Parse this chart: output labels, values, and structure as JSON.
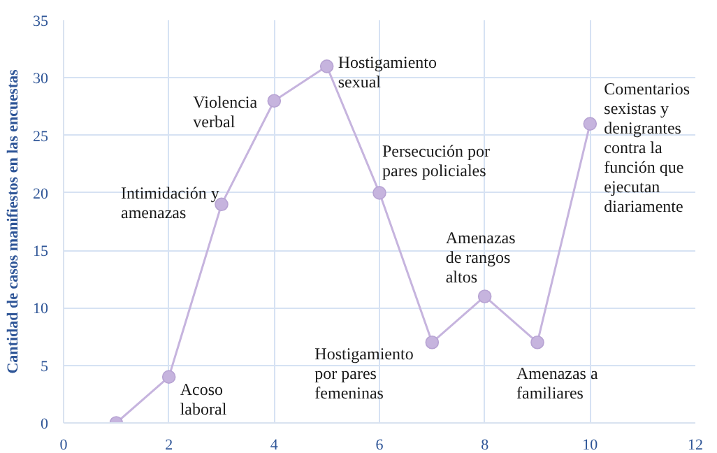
{
  "chart_data": {
    "type": "line",
    "ylabel": "Cantidad de casos manifiestos en las encuestas",
    "x": [
      1,
      2,
      3,
      4,
      5,
      6,
      7,
      8,
      9,
      10
    ],
    "series": [
      {
        "color": "#c6b4de",
        "values": [
          0,
          4,
          19,
          28,
          31,
          20,
          7,
          11,
          7,
          26
        ]
      }
    ],
    "xlim": [
      0,
      12
    ],
    "xticks": [
      0,
      2,
      4,
      6,
      8,
      10,
      12
    ],
    "ylim": [
      0,
      35
    ],
    "yticks": [
      0,
      5,
      10,
      15,
      20,
      25,
      30,
      35
    ],
    "grid": true,
    "marker": "circle",
    "line_style": "solid",
    "annotations": [
      {
        "text": "Acoso\nlaboral",
        "x": 2,
        "y": 4
      },
      {
        "text": "Intimidación  y\namenazas",
        "x": 3,
        "y": 19
      },
      {
        "text": "Violencia\nverbal",
        "x": 4,
        "y": 28
      },
      {
        "text": "Hostigamiento\nsexual",
        "x": 5,
        "y": 31
      },
      {
        "text": "Persecución por\npares policiales",
        "x": 6,
        "y": 20
      },
      {
        "text": "Hostigamiento\npor pares\nfemeninas",
        "x": 7,
        "y": 7
      },
      {
        "text": "Amenazas\nde rangos\naltos",
        "x": 8,
        "y": 11
      },
      {
        "text": "Amenazas a\nfamiliares",
        "x": 9,
        "y": 7
      },
      {
        "text": "Comentarios\nsexistas y\ndenigrantes\ncontra la\nfunción que\nejecutan\ndiariamente",
        "x": 10,
        "y": 26
      }
    ]
  }
}
